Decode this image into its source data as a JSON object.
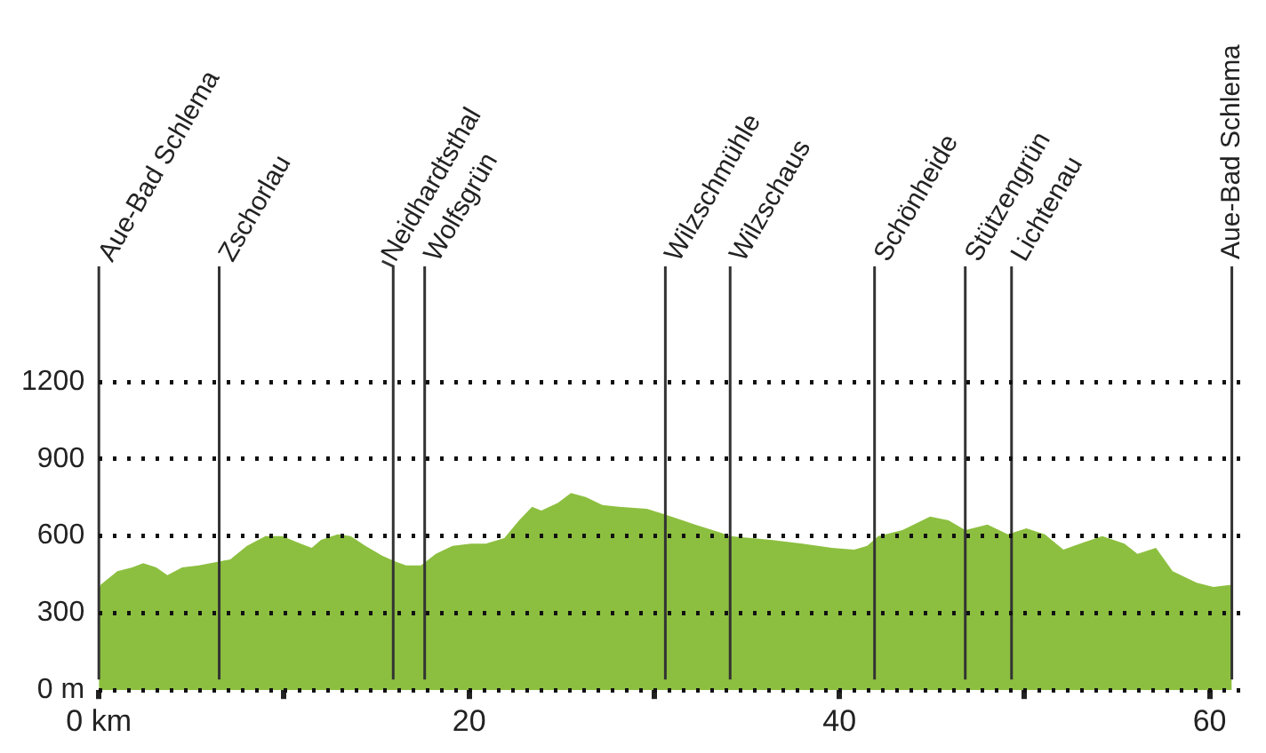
{
  "chart_data": {
    "type": "area",
    "series": [
      {
        "color": "#8cbf3f",
        "x": [
          0,
          0.1,
          1.0,
          1.8,
          2.4,
          3.1,
          3.7,
          4.5,
          5.4,
          7.1,
          8.0,
          9.0,
          9.9,
          10.9,
          11.5,
          12.0,
          12.9,
          13.6,
          14.4,
          15.3,
          16.0,
          16.6,
          17.4,
          18.2,
          19.1,
          20.1,
          20.9,
          21.9,
          22.7,
          23.4,
          23.9,
          24.8,
          25.5,
          26.3,
          27.2,
          28.1,
          29.6,
          30.6,
          32.2,
          33.5,
          34.1,
          36.3,
          38.0,
          39.6,
          40.8,
          41.5,
          42.1,
          43.4,
          44.9,
          45.9,
          46.8,
          48.0,
          49.1,
          50.1,
          51.1,
          52.1,
          53.0,
          54.2,
          55.4,
          56.1,
          57.1,
          58.0,
          59.3,
          60.2,
          61.2
        ],
        "values": [
          390,
          410,
          463,
          478,
          494,
          478,
          448,
          478,
          486,
          509,
          562,
          600,
          600,
          570,
          554,
          585,
          607,
          600,
          562,
          524,
          501,
          486,
          486,
          531,
          562,
          570,
          570,
          592,
          661,
          714,
          699,
          729,
          767,
          752,
          721,
          714,
          706,
          684,
          645,
          615,
          600,
          585,
          570,
          554,
          547,
          562,
          600,
          623,
          676,
          661,
          623,
          645,
          607,
          630,
          607,
          547,
          570,
          600,
          570,
          531,
          554,
          463,
          418,
          402,
          410
        ]
      }
    ],
    "xlim": [
      0,
      61.7
    ],
    "xticks": [
      {
        "value": 0,
        "label": "0 km"
      },
      {
        "value": 10,
        "label": null
      },
      20,
      {
        "value": 30,
        "label": null
      },
      40,
      {
        "value": 50,
        "label": null
      },
      60
    ],
    "ylim": [
      0,
      1650
    ],
    "yticks": [
      {
        "value": 0,
        "label": "0 m"
      },
      300,
      600,
      900,
      1200
    ],
    "grid": "y",
    "legend": false,
    "ref_lines": [
      {
        "axis": "x",
        "value": 0,
        "label": "Aue-Bad Schlema"
      },
      {
        "axis": "x",
        "value": 6.5,
        "label": "Zschorlau"
      },
      {
        "axis": "x",
        "value": 15.9,
        "label": "Neidhardtsthal"
      },
      {
        "axis": "x",
        "value": 17.6,
        "label": "Wolfsgrün"
      },
      {
        "axis": "x",
        "value": 30.6,
        "label": "Wilzschmühle"
      },
      {
        "axis": "x",
        "value": 34.1,
        "label": "Wilzschaus"
      },
      {
        "axis": "x",
        "value": 41.9,
        "label": "Schönheide"
      },
      {
        "axis": "x",
        "value": 46.8,
        "label": "Stützengrün"
      },
      {
        "axis": "x",
        "value": 49.3,
        "label": "Lichtenau"
      },
      {
        "axis": "x",
        "value": 61.2,
        "label": "Aue-Bad Schlema"
      }
    ]
  }
}
